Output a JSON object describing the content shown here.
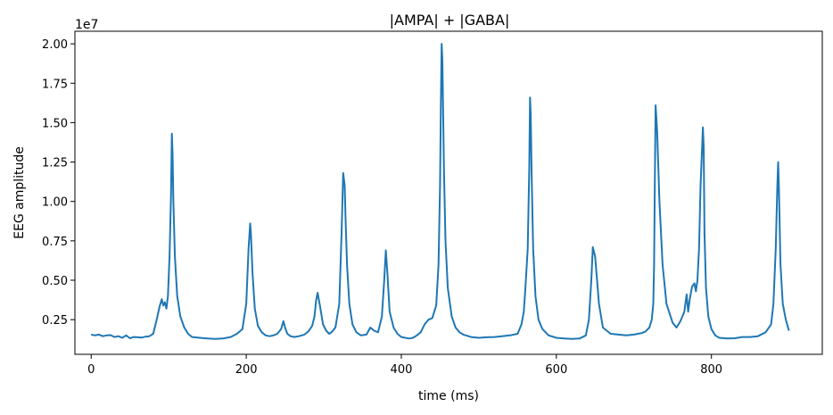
{
  "chart_data": {
    "type": "line",
    "title": "|AMPA| + |GABA|",
    "xlabel": "time (ms)",
    "ylabel": "EEG amplitude",
    "offset_label": "1e7",
    "xlim": [
      -21,
      943
    ],
    "ylim": [
      300000,
      20800000
    ],
    "xticks": [
      0,
      200,
      400,
      600,
      800
    ],
    "xtick_labels": [
      "0",
      "200",
      "400",
      "600",
      "800"
    ],
    "yticks": [
      2500000,
      5000000,
      7500000,
      10000000,
      12500000,
      15000000,
      17500000,
      20000000
    ],
    "ytick_labels": [
      "0.25",
      "0.50",
      "0.75",
      "1.00",
      "1.25",
      "1.50",
      "1.75",
      "2.00"
    ],
    "grid": false,
    "line_color": "#1f77b4",
    "series": [
      {
        "name": "",
        "x": [
          0,
          5,
          10,
          15,
          20,
          25,
          30,
          35,
          40,
          45,
          50,
          55,
          60,
          65,
          70,
          75,
          80,
          85,
          88,
          91,
          93,
          95,
          97,
          99,
          101,
          103,
          104,
          105,
          106,
          108,
          111,
          115,
          120,
          125,
          130,
          140,
          150,
          160,
          170,
          180,
          188,
          195,
          200,
          203,
          205,
          206,
          208,
          211,
          215,
          220,
          225,
          230,
          235,
          240,
          245,
          248,
          250,
          253,
          257,
          262,
          268,
          275,
          280,
          285,
          288,
          290,
          292,
          295,
          299,
          303,
          307,
          310,
          315,
          320,
          323,
          325,
          327,
          328,
          330,
          333,
          337,
          342,
          348,
          355,
          360,
          365,
          370,
          375,
          378,
          380,
          382,
          385,
          390,
          395,
          400,
          405,
          410,
          415,
          420,
          425,
          430,
          435,
          440,
          445,
          448,
          450,
          451,
          452,
          453,
          455,
          457,
          460,
          465,
          470,
          475,
          480,
          490,
          500,
          510,
          520,
          530,
          540,
          550,
          555,
          558,
          560,
          563,
          565,
          566,
          567,
          568,
          570,
          573,
          577,
          582,
          590,
          600,
          610,
          620,
          630,
          638,
          642,
          645,
          647,
          650,
          655,
          660,
          670,
          680,
          690,
          700,
          705,
          710,
          715,
          720,
          723,
          725,
          726,
          727,
          728,
          730,
          733,
          737,
          742,
          750,
          755,
          760,
          765,
          768,
          770,
          772,
          775,
          778,
          780,
          782,
          784,
          786,
          788,
          789,
          790,
          791,
          793,
          796,
          800,
          805,
          810,
          820,
          830,
          840,
          850,
          860,
          870,
          877,
          880,
          883,
          885,
          886,
          887,
          889,
          892,
          896,
          900
        ],
        "values": [
          1550000,
          1500000,
          1550000,
          1450000,
          1500000,
          1520000,
          1400000,
          1450000,
          1350000,
          1500000,
          1320000,
          1400000,
          1380000,
          1360000,
          1420000,
          1450000,
          1600000,
          2600000,
          3300000,
          3800000,
          3400000,
          3600000,
          3200000,
          4000000,
          6500000,
          10500000,
          14300000,
          13000000,
          10000000,
          6500000,
          4000000,
          2700000,
          2000000,
          1600000,
          1400000,
          1350000,
          1300000,
          1280000,
          1300000,
          1400000,
          1600000,
          1900000,
          3500000,
          7000000,
          8600000,
          8000000,
          5500000,
          3200000,
          2100000,
          1700000,
          1500000,
          1450000,
          1500000,
          1600000,
          1900000,
          2400000,
          2000000,
          1600000,
          1450000,
          1400000,
          1450000,
          1550000,
          1750000,
          2100000,
          2700000,
          3700000,
          4200000,
          3400000,
          2200000,
          1800000,
          1600000,
          1700000,
          2000000,
          3500000,
          8000000,
          11800000,
          11000000,
          9000000,
          6000000,
          3500000,
          2200000,
          1700000,
          1500000,
          1550000,
          2000000,
          1800000,
          1700000,
          2700000,
          5000000,
          6900000,
          5500000,
          3000000,
          2000000,
          1600000,
          1400000,
          1350000,
          1300000,
          1350000,
          1500000,
          1700000,
          2200000,
          2500000,
          2600000,
          3400000,
          6000000,
          11000000,
          16000000,
          20000000,
          19000000,
          12000000,
          7500000,
          4500000,
          2700000,
          2000000,
          1700000,
          1550000,
          1400000,
          1350000,
          1380000,
          1400000,
          1450000,
          1500000,
          1600000,
          2200000,
          3000000,
          4500000,
          7000000,
          12000000,
          16600000,
          15500000,
          12000000,
          7000000,
          4000000,
          2500000,
          1900000,
          1500000,
          1350000,
          1300000,
          1280000,
          1300000,
          1500000,
          2500000,
          5000000,
          7100000,
          6500000,
          3500000,
          2000000,
          1600000,
          1550000,
          1500000,
          1550000,
          1600000,
          1650000,
          1750000,
          2000000,
          2500000,
          3500000,
          6000000,
          11000000,
          16100000,
          14500000,
          10000000,
          6000000,
          3500000,
          2300000,
          2000000,
          2400000,
          3000000,
          4100000,
          3000000,
          3800000,
          4600000,
          4800000,
          4300000,
          5000000,
          7000000,
          11000000,
          13500000,
          14700000,
          13500000,
          8000000,
          4500000,
          2700000,
          1900000,
          1500000,
          1350000,
          1300000,
          1320000,
          1400000,
          1400000,
          1450000,
          1700000,
          2200000,
          3500000,
          7000000,
          11000000,
          12500000,
          11000000,
          6000000,
          3500000,
          2500000,
          1800000
        ]
      }
    ]
  }
}
